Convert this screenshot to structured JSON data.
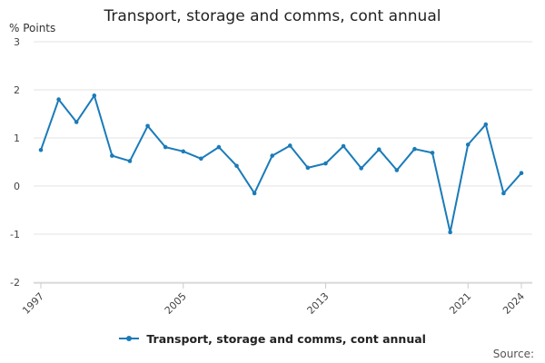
{
  "chart_data": {
    "type": "line",
    "title": "Transport, storage and comms, cont annual",
    "ylabel": "% Points",
    "xlabel": "",
    "ylim": [
      -2,
      3
    ],
    "yticks": [
      "3",
      "2",
      "1",
      "0",
      "-1",
      "-2"
    ],
    "xticks": [
      "1997",
      "2005",
      "2013",
      "2021",
      "2024"
    ],
    "grid": true,
    "legend_position": "bottom",
    "series": [
      {
        "name": "Transport, storage and comms, cont annual",
        "color": "#1a7bb9",
        "x": [
          1997,
          1998,
          1999,
          2000,
          2001,
          2002,
          2003,
          2004,
          2005,
          2006,
          2007,
          2008,
          2009,
          2010,
          2011,
          2012,
          2013,
          2014,
          2015,
          2016,
          2017,
          2018,
          2019,
          2020,
          2021,
          2022,
          2023,
          2024
        ],
        "values": [
          0.75,
          1.8,
          1.33,
          1.88,
          0.63,
          0.52,
          1.25,
          0.81,
          0.72,
          0.57,
          0.81,
          0.42,
          -0.15,
          0.63,
          0.84,
          0.38,
          0.47,
          0.83,
          0.37,
          0.76,
          0.33,
          0.77,
          0.69,
          -0.96,
          0.86,
          1.28,
          -0.15,
          0.27
        ]
      }
    ]
  },
  "source_label": "Source:"
}
